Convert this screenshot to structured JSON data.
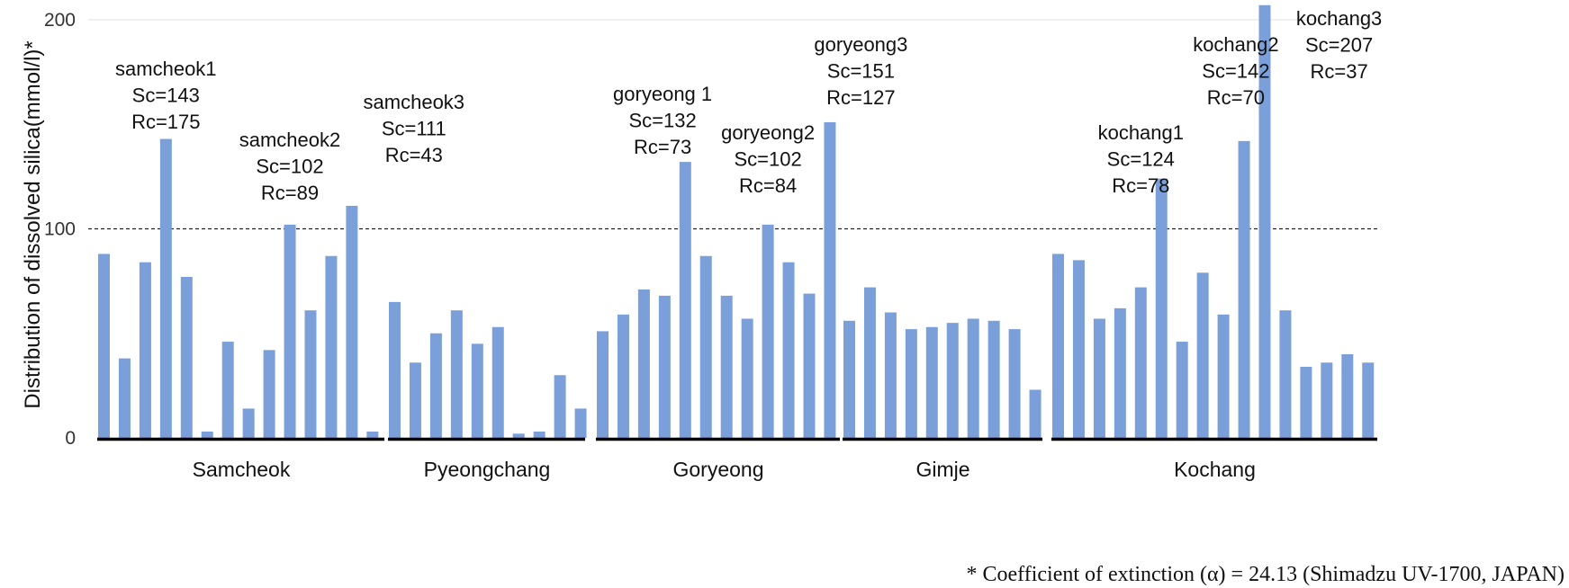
{
  "chart_data": {
    "type": "bar",
    "ylabel": "Distribution of dissolved silica(mmol/l)*",
    "ylim": [
      0,
      200
    ],
    "yticks": [
      0,
      100,
      200
    ],
    "threshold": 100,
    "bar_color": "#7b9fd9",
    "groups": [
      {
        "name": "Samcheok",
        "values": [
          88,
          38,
          84,
          143,
          77,
          3,
          46,
          14,
          42,
          102,
          61,
          87,
          111,
          3
        ]
      },
      {
        "name": "Pyeongchang",
        "values": [
          65,
          36,
          50,
          61,
          45,
          53,
          2,
          3,
          30,
          14
        ]
      },
      {
        "name": "Goryeong",
        "values": [
          51,
          59,
          71,
          68,
          132,
          87,
          68,
          57,
          102,
          84,
          69,
          151
        ]
      },
      {
        "name": "Gimje",
        "values": [
          56,
          72,
          60,
          52,
          53,
          55,
          57,
          56,
          52,
          23
        ]
      },
      {
        "name": "Kochang",
        "values": [
          88,
          85,
          57,
          62,
          72,
          124,
          46,
          79,
          59,
          142,
          207,
          61,
          34,
          36,
          40,
          36
        ]
      }
    ],
    "annotations": [
      {
        "lines": [
          "samcheok1",
          "Sc=143",
          "Rc=175"
        ],
        "group": 0,
        "bar": 3,
        "row": 0
      },
      {
        "lines": [
          "samcheok2",
          "Sc=102",
          "Rc=89"
        ],
        "group": 0,
        "bar": 9,
        "row": 1
      },
      {
        "lines": [
          "samcheok3",
          "Sc=111",
          "Rc=43"
        ],
        "group": 0,
        "bar": 12,
        "offset": 3,
        "row": 2
      },
      {
        "lines": [
          "goryeong 1",
          "Sc=132",
          "Rc=73"
        ],
        "group": 2,
        "bar": 4,
        "offset": -1.1,
        "row": 3
      },
      {
        "lines": [
          "goryeong2",
          "Sc=102",
          "Rc=84"
        ],
        "group": 2,
        "bar": 8,
        "row": 4
      },
      {
        "lines": [
          "goryeong3",
          "Sc=151",
          "Rc=127"
        ],
        "group": 2,
        "bar": 11,
        "offset": 1.5,
        "row": 5
      },
      {
        "lines": [
          "kochang1",
          "Sc=124",
          "Rc=78"
        ],
        "group": 4,
        "bar": 5,
        "offset": -1,
        "row": 6
      },
      {
        "lines": [
          "kochang2",
          "Sc=142",
          "Rc=70"
        ],
        "group": 4,
        "bar": 9,
        "offset": -0.4,
        "row": 7
      },
      {
        "lines": [
          "kochang3",
          "Sc=207",
          "Rc=37"
        ],
        "group": 4,
        "bar": 10,
        "offset": 3.6,
        "row": 8
      }
    ],
    "footnote": "* Coefficient of extinction (α) = 24.13 (Shimadzu UV-1700, JAPAN)"
  }
}
